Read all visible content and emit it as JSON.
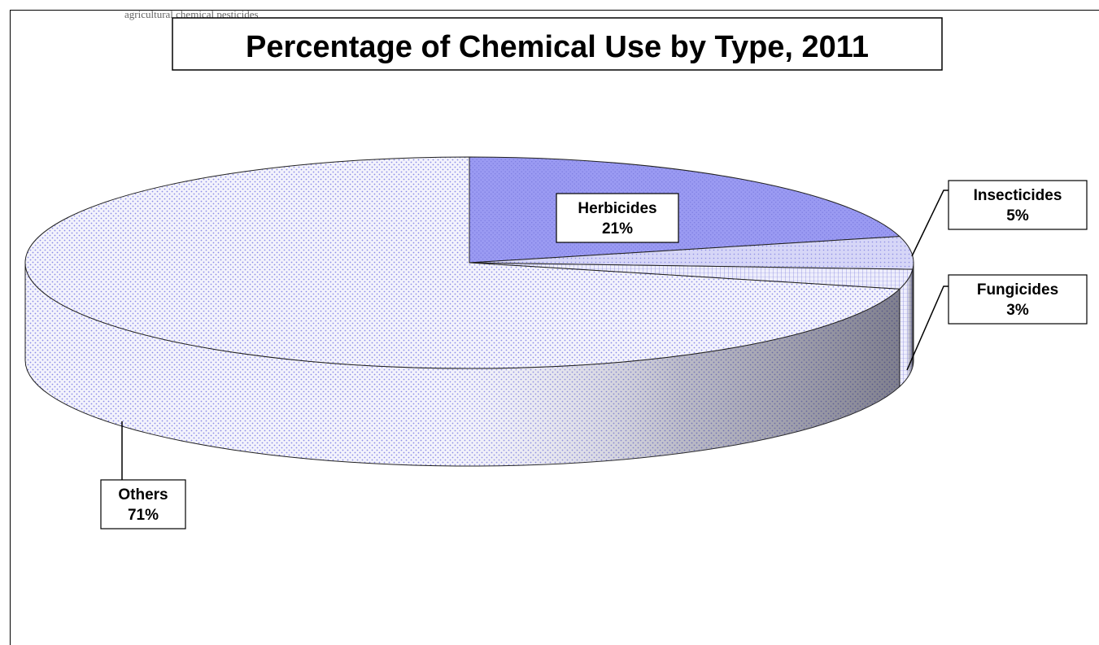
{
  "caption": "agricultural chemical pesticides",
  "chart_data": {
    "type": "pie",
    "title": "Percentage of Chemical Use by Type, 2011",
    "slices": [
      {
        "name": "Herbicides",
        "value": 21,
        "label": "21%",
        "color": "#9999f0"
      },
      {
        "name": "Insecticides",
        "value": 5,
        "label": "5%",
        "color": "#d4d4f6"
      },
      {
        "name": "Fungicides",
        "value": 3,
        "label": "3%",
        "color": "#ebebfb"
      },
      {
        "name": "Others",
        "value": 71,
        "label": "71%",
        "color": "#f1f1fb"
      }
    ],
    "three_d": true,
    "legend": "none"
  }
}
